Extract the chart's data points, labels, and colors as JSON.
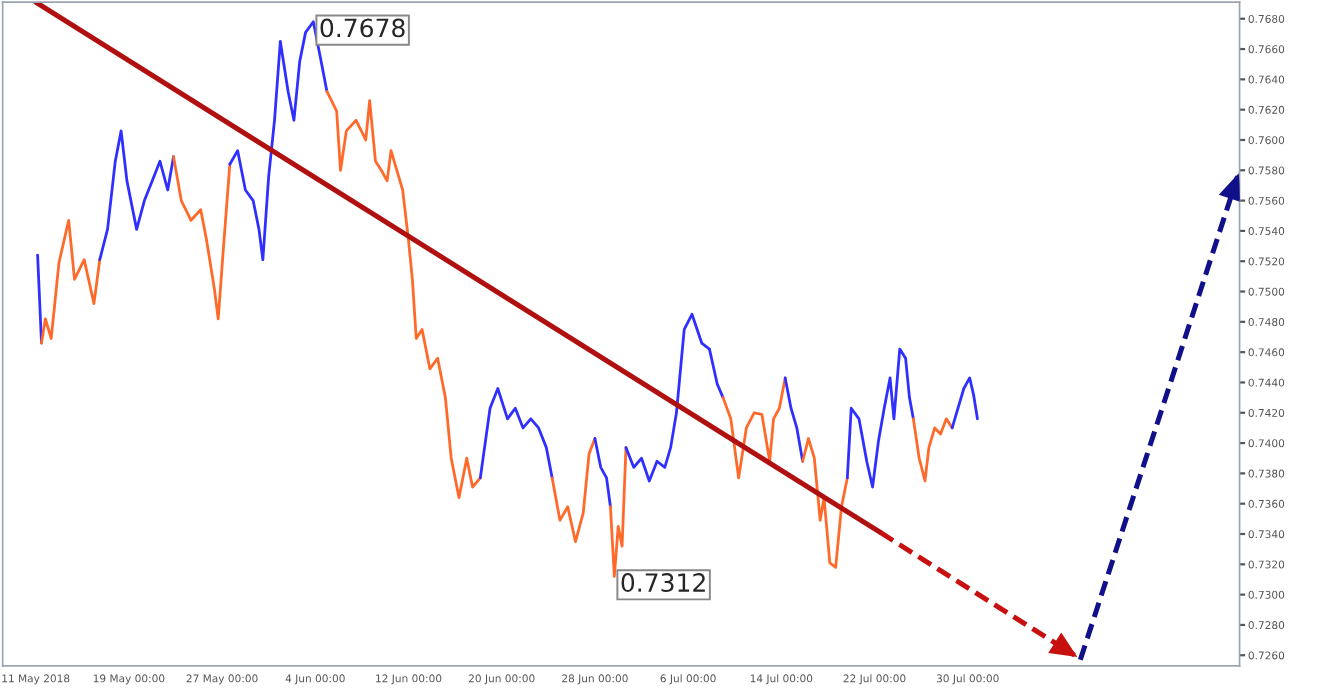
{
  "chart_data": {
    "type": "line",
    "xlim": [
      "2018-05-08T04:00",
      "2018-08-22T08:00"
    ],
    "ylim": [
      0.7253,
      0.7691
    ],
    "xticks": [
      {
        "value": "2018-05-11",
        "label": "11 May 2018"
      },
      {
        "value": "2018-05-19",
        "label": "19 May 00:00"
      },
      {
        "value": "2018-05-27",
        "label": "27 May 00:00"
      },
      {
        "value": "2018-06-04",
        "label": "4 Jun 00:00"
      },
      {
        "value": "2018-06-12",
        "label": "12 Jun 00:00"
      },
      {
        "value": "2018-06-20",
        "label": "20 Jun 00:00"
      },
      {
        "value": "2018-06-28",
        "label": "28 Jun 00:00"
      },
      {
        "value": "2018-07-06",
        "label": "6 Jul 00:00"
      },
      {
        "value": "2018-07-14",
        "label": "14 Jul 00:00"
      },
      {
        "value": "2018-07-22",
        "label": "22 Jul 00:00"
      },
      {
        "value": "2018-07-30",
        "label": "30 Jul 00:00"
      }
    ],
    "yticks": [
      {
        "value": 0.726,
        "label": "0.7260"
      },
      {
        "value": 0.728,
        "label": "0.7280"
      },
      {
        "value": 0.73,
        "label": "0.7300"
      },
      {
        "value": 0.732,
        "label": "0.7320"
      },
      {
        "value": 0.734,
        "label": "0.7340"
      },
      {
        "value": 0.736,
        "label": "0.7360"
      },
      {
        "value": 0.738,
        "label": "0.7380"
      },
      {
        "value": 0.74,
        "label": "0.7400"
      },
      {
        "value": 0.742,
        "label": "0.7420"
      },
      {
        "value": 0.744,
        "label": "0.7440"
      },
      {
        "value": 0.746,
        "label": "0.7460"
      },
      {
        "value": 0.748,
        "label": "0.7480"
      },
      {
        "value": 0.75,
        "label": "0.7500"
      },
      {
        "value": 0.752,
        "label": "0.7520"
      },
      {
        "value": 0.754,
        "label": "0.7540"
      },
      {
        "value": 0.756,
        "label": "0.7560"
      },
      {
        "value": 0.758,
        "label": "0.7580"
      },
      {
        "value": 0.76,
        "label": "0.7600"
      },
      {
        "value": 0.762,
        "label": "0.7620"
      },
      {
        "value": 0.764,
        "label": "0.7640"
      },
      {
        "value": 0.766,
        "label": "0.7660"
      },
      {
        "value": 0.768,
        "label": "0.7680"
      }
    ],
    "annotations": [
      {
        "text": "0.7678",
        "x": "2018-06-03T20:00",
        "y": 0.7678
      },
      {
        "text": "0.7312",
        "x": "2018-06-29T16:00",
        "y": 0.7312
      }
    ],
    "series": [
      {
        "color": "#2f2fff",
        "x": [
          "2018-05-11T04:00",
          "2018-05-11T12:00"
        ],
        "values": [
          0.7524,
          0.7466
        ]
      },
      {
        "color": "#ff6a2a",
        "x": [
          "2018-05-11T12:00",
          "2018-05-11T20:00",
          "2018-05-12T08:00",
          "2018-05-13T00:00",
          "2018-05-13T20:00",
          "2018-05-14T08:00",
          "2018-05-15T04:00",
          "2018-05-16T00:00",
          "2018-05-16T12:00"
        ],
        "values": [
          0.7466,
          0.7482,
          0.7469,
          0.7519,
          0.7547,
          0.7508,
          0.7521,
          0.7492,
          0.7521
        ]
      },
      {
        "color": "#2f2fff",
        "x": [
          "2018-05-16T12:00",
          "2018-05-17T04:00",
          "2018-05-17T20:00",
          "2018-05-18T08:00",
          "2018-05-18T20:00",
          "2018-05-19T16:00",
          "2018-05-20T08:00",
          "2018-05-21T00:00",
          "2018-05-21T16:00",
          "2018-05-22T08:00",
          "2018-05-22T20:00"
        ],
        "values": [
          0.7521,
          0.7541,
          0.7586,
          0.7606,
          0.7573,
          0.7541,
          0.756,
          0.7573,
          0.7586,
          0.7567,
          0.7589
        ]
      },
      {
        "color": "#ff6a2a",
        "x": [
          "2018-05-22T20:00",
          "2018-05-23T12:00",
          "2018-05-24T08:00",
          "2018-05-25T04:00",
          "2018-05-25T16:00",
          "2018-05-26T08:00",
          "2018-05-26T16:00",
          "2018-05-27T04:00",
          "2018-05-27T16:00"
        ],
        "values": [
          0.7589,
          0.756,
          0.7547,
          0.7554,
          0.7534,
          0.7502,
          0.7482,
          0.7534,
          0.7584
        ]
      },
      {
        "color": "#2f2fff",
        "x": [
          "2018-05-27T16:00",
          "2018-05-28T08:00",
          "2018-05-29T00:00",
          "2018-05-29T16:00",
          "2018-05-30T04:00",
          "2018-05-30T12:00",
          "2018-05-31T00:00",
          "2018-05-31T12:00",
          "2018-06-01T00:00",
          "2018-06-01T16:00",
          "2018-06-02T04:00",
          "2018-06-02T16:00",
          "2018-06-03T04:00",
          "2018-06-03T20:00",
          "2018-06-04T12:00",
          "2018-06-05T00:00"
        ],
        "values": [
          0.7584,
          0.7593,
          0.7567,
          0.756,
          0.7541,
          0.7521,
          0.7576,
          0.7613,
          0.7665,
          0.7632,
          0.7613,
          0.7652,
          0.7671,
          0.7678,
          0.7652,
          0.7632
        ]
      },
      {
        "color": "#ff6a2a",
        "x": [
          "2018-06-05T00:00",
          "2018-06-05T20:00",
          "2018-06-06T04:00",
          "2018-06-06T16:00",
          "2018-06-07T12:00",
          "2018-06-08T08:00",
          "2018-06-08T16:00",
          "2018-06-09T04:00",
          "2018-06-09T16:00",
          "2018-06-10T04:00",
          "2018-06-10T12:00",
          "2018-06-11T00:00",
          "2018-06-11T12:00",
          "2018-06-12T00:00",
          "2018-06-12T08:00",
          "2018-06-12T16:00",
          "2018-06-13T04:00",
          "2018-06-13T20:00",
          "2018-06-14T12:00",
          "2018-06-15T04:00",
          "2018-06-15T16:00",
          "2018-06-16T08:00",
          "2018-06-17T00:00",
          "2018-06-17T12:00",
          "2018-06-18T04:00"
        ],
        "values": [
          0.7632,
          0.7619,
          0.758,
          0.7606,
          0.7613,
          0.76,
          0.7626,
          0.7586,
          0.758,
          0.7573,
          0.7593,
          0.758,
          0.7567,
          0.7534,
          0.7508,
          0.7469,
          0.7475,
          0.7449,
          0.7456,
          0.743,
          0.739,
          0.7364,
          0.739,
          0.7371,
          0.7377
        ]
      },
      {
        "color": "#2f2fff",
        "x": [
          "2018-06-18T04:00",
          "2018-06-19T00:00",
          "2018-06-19T16:00",
          "2018-06-20T12:00",
          "2018-06-21T04:00",
          "2018-06-21T20:00",
          "2018-06-22T12:00",
          "2018-06-23T04:00",
          "2018-06-23T20:00",
          "2018-06-24T08:00"
        ],
        "values": [
          0.7377,
          0.7423,
          0.7436,
          0.7416,
          0.7423,
          0.741,
          0.7416,
          0.741,
          0.7397,
          0.7377
        ]
      },
      {
        "color": "#ff6a2a",
        "x": [
          "2018-06-24T08:00",
          "2018-06-25T00:00",
          "2018-06-25T16:00",
          "2018-06-26T08:00",
          "2018-06-27T00:00",
          "2018-06-27T12:00",
          "2018-06-28T00:00"
        ],
        "values": [
          0.7377,
          0.7349,
          0.7358,
          0.7335,
          0.7354,
          0.7393,
          0.7403
        ]
      },
      {
        "color": "#2f2fff",
        "x": [
          "2018-06-28T00:00",
          "2018-06-28T12:00",
          "2018-06-29T00:00",
          "2018-06-29T08:00"
        ],
        "values": [
          0.7403,
          0.7384,
          0.7377,
          0.7358
        ]
      },
      {
        "color": "#ff6a2a",
        "x": [
          "2018-06-29T08:00",
          "2018-06-29T16:00",
          "2018-06-30T00:00",
          "2018-06-30T08:00",
          "2018-06-30T16:00"
        ],
        "values": [
          0.7358,
          0.7312,
          0.7345,
          0.7332,
          0.7397
        ]
      },
      {
        "color": "#2f2fff",
        "x": [
          "2018-06-30T16:00",
          "2018-07-01T08:00",
          "2018-07-02T00:00",
          "2018-07-02T16:00",
          "2018-07-03T08:00",
          "2018-07-04T00:00",
          "2018-07-04T12:00",
          "2018-07-05T00:00",
          "2018-07-05T16:00",
          "2018-07-06T08:00",
          "2018-07-07T04:00",
          "2018-07-07T20:00",
          "2018-07-08T12:00",
          "2018-07-09T00:00"
        ],
        "values": [
          0.7397,
          0.7384,
          0.739,
          0.7375,
          0.7388,
          0.7384,
          0.7397,
          0.742,
          0.7475,
          0.7485,
          0.7466,
          0.7462,
          0.7439,
          0.743
        ]
      },
      {
        "color": "#ff6a2a",
        "x": [
          "2018-07-09T00:00",
          "2018-07-09T16:00",
          "2018-07-10T08:00",
          "2018-07-11T00:00",
          "2018-07-11T16:00",
          "2018-07-12T08:00",
          "2018-07-13T00:00",
          "2018-07-13T08:00",
          "2018-07-13T20:00",
          "2018-07-14T08:00"
        ],
        "values": [
          0.743,
          0.7416,
          0.7377,
          0.741,
          0.742,
          0.7419,
          0.7388,
          0.7416,
          0.7423,
          0.7443
        ]
      },
      {
        "color": "#2f2fff",
        "x": [
          "2018-07-14T08:00",
          "2018-07-14T20:00",
          "2018-07-15T08:00",
          "2018-07-15T20:00"
        ],
        "values": [
          0.7443,
          0.7423,
          0.741,
          0.7388
        ]
      },
      {
        "color": "#ff6a2a",
        "x": [
          "2018-07-15T20:00",
          "2018-07-16T08:00",
          "2018-07-16T20:00",
          "2018-07-17T08:00",
          "2018-07-17T16:00",
          "2018-07-18T04:00",
          "2018-07-18T16:00",
          "2018-07-19T04:00",
          "2018-07-19T16:00"
        ],
        "values": [
          0.7388,
          0.7403,
          0.739,
          0.7349,
          0.7364,
          0.7321,
          0.7318,
          0.7358,
          0.7377
        ]
      },
      {
        "color": "#2f2fff",
        "x": [
          "2018-07-19T16:00",
          "2018-07-20T00:00",
          "2018-07-20T16:00",
          "2018-07-21T08:00",
          "2018-07-21T20:00",
          "2018-07-22T08:00",
          "2018-07-22T20:00",
          "2018-07-23T08:00",
          "2018-07-23T16:00",
          "2018-07-24T04:00",
          "2018-07-24T16:00",
          "2018-07-25T00:00",
          "2018-07-25T08:00"
        ],
        "values": [
          0.7377,
          0.7423,
          0.7416,
          0.7388,
          0.7371,
          0.7401,
          0.7423,
          0.7443,
          0.7416,
          0.7462,
          0.7456,
          0.743,
          0.7416
        ]
      },
      {
        "color": "#ff6a2a",
        "x": [
          "2018-07-25T08:00",
          "2018-07-25T20:00",
          "2018-07-26T08:00",
          "2018-07-26T16:00",
          "2018-07-27T04:00",
          "2018-07-27T16:00",
          "2018-07-28T04:00",
          "2018-07-28T16:00"
        ],
        "values": [
          0.7416,
          0.739,
          0.7375,
          0.7397,
          0.741,
          0.7406,
          0.7416,
          0.741
        ]
      },
      {
        "color": "#2f2fff",
        "x": [
          "2018-07-28T16:00",
          "2018-07-29T04:00",
          "2018-07-29T16:00",
          "2018-07-30T04:00",
          "2018-07-30T12:00",
          "2018-07-30T20:00"
        ],
        "values": [
          0.741,
          0.7423,
          0.7436,
          0.7443,
          0.7432,
          0.7416
        ]
      },
      {
        "color": "#b01010",
        "line_style": "solid",
        "x": [
          "2018-05-11T00:00",
          "2018-07-22T12:00"
        ],
        "values": [
          0.7691,
          0.7341
        ]
      },
      {
        "color": "#c81010",
        "line_style": "dashed",
        "x": [
          "2018-07-22T12:00",
          "2018-08-08T04:00"
        ],
        "values": [
          0.7341,
          0.726
        ]
      },
      {
        "color": "#10108a",
        "line_style": "dashed",
        "x": [
          "2018-08-08T16:00",
          "2018-08-22T04:00"
        ],
        "values": [
          0.7257,
          0.7576
        ]
      }
    ]
  }
}
